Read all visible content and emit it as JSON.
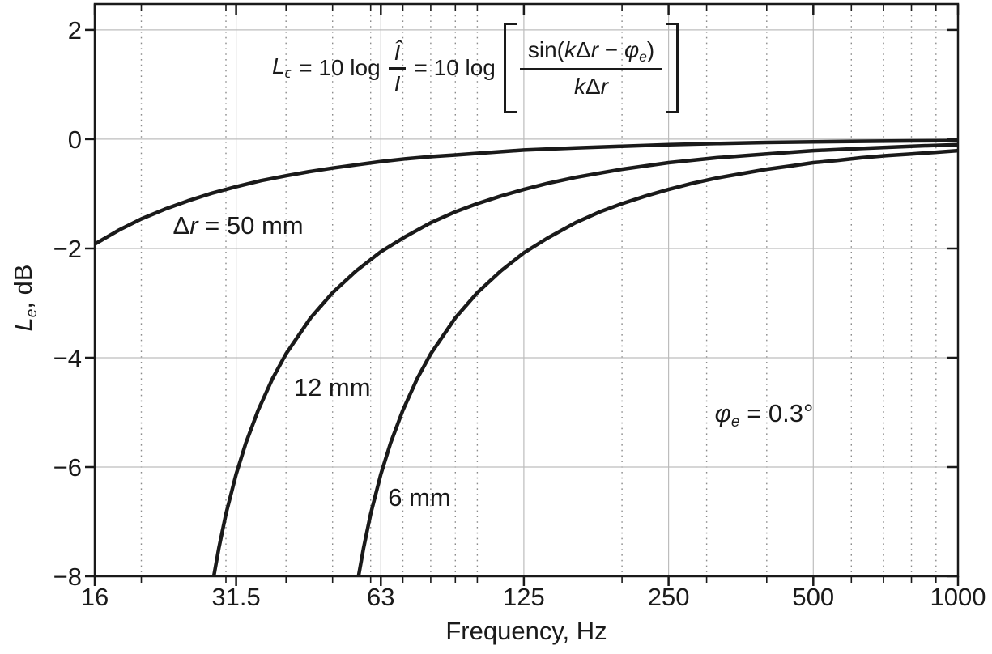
{
  "palette": {
    "curve": "#1a1a1a",
    "border": "#1a1a1a",
    "tick": "#1a1a1a",
    "text": "#1a1a1a",
    "grid_solid": "#bdbdbd",
    "grid_dotted": "#8a8a8a",
    "background": "#ffffff"
  },
  "formula": {
    "lhs": "L",
    "lhs_sub": "ϵ",
    "eq1": "= 10 log",
    "num1": "Î",
    "den1": "I",
    "eq2": "= 10 log",
    "n2_sin": "sin(",
    "n2_k": "k",
    "n2_d": "Δ",
    "n2_r": "r",
    "n2_minus": " − ",
    "n2_phi": "φ",
    "n2_sub": "e",
    "n2_close": ")",
    "d2_k": "k",
    "d2_d": "Δ",
    "d2_r": "r",
    "as_text": "L_ϵ = 10 log (Î/I) = 10 log [sin(kΔr − φ_e)/(kΔr)]"
  },
  "chart_data": {
    "type": "line",
    "title": "",
    "xlabel": "Frequency, Hz",
    "ylabel_parts": {
      "main": "L",
      "sub": "e",
      "rest": ", dB"
    },
    "x_scale": "log",
    "x_range": [
      16,
      1000
    ],
    "y_range": [
      -8,
      2.473
    ],
    "grid": "horizontal solid at each 2 dB; vertical solid at major octave ticks; vertical dotted at decade minors",
    "legend_position": "none (curves labeled inline)",
    "x_major_ticks": [
      {
        "v": 16,
        "label": "16",
        "grid": false
      },
      {
        "v": 31.5,
        "label": "31.5",
        "grid": true
      },
      {
        "v": 63,
        "label": "63",
        "grid": true
      },
      {
        "v": 125,
        "label": "125",
        "grid": true
      },
      {
        "v": 250,
        "label": "250",
        "grid": true
      },
      {
        "v": 500,
        "label": "500",
        "grid": true
      },
      {
        "v": 1000,
        "label": "1000",
        "grid": false
      }
    ],
    "x_minor_ticks": [
      20,
      30,
      40,
      50,
      60,
      70,
      80,
      90,
      100,
      200,
      300,
      400,
      600,
      700,
      800,
      900
    ],
    "y_ticks": [
      {
        "v": 2,
        "label": "2"
      },
      {
        "v": 0,
        "label": "0"
      },
      {
        "v": -2,
        "label": "−2"
      },
      {
        "v": -4,
        "label": "−4"
      },
      {
        "v": -6,
        "label": "−6"
      },
      {
        "v": -8,
        "label": "−8"
      }
    ],
    "phase_error_deg": 0.3,
    "series": [
      {
        "name": "Δr = 50 mm",
        "dr_mm": 50,
        "points": [
          [
            16,
            -1.92
          ],
          [
            18,
            -1.66
          ],
          [
            20,
            -1.46
          ],
          [
            22.4,
            -1.28
          ],
          [
            25,
            -1.13
          ],
          [
            28,
            -0.99
          ],
          [
            31.5,
            -0.87
          ],
          [
            35.5,
            -0.76
          ],
          [
            40,
            -0.67
          ],
          [
            45,
            -0.59
          ],
          [
            50,
            -0.53
          ],
          [
            56,
            -0.47
          ],
          [
            63,
            -0.41
          ],
          [
            71,
            -0.36
          ],
          [
            80,
            -0.32
          ],
          [
            90,
            -0.29
          ],
          [
            100,
            -0.26
          ],
          [
            125,
            -0.2
          ],
          [
            160,
            -0.16
          ],
          [
            200,
            -0.13
          ],
          [
            250,
            -0.1
          ],
          [
            315,
            -0.08
          ],
          [
            400,
            -0.06
          ],
          [
            500,
            -0.05
          ],
          [
            630,
            -0.04
          ],
          [
            800,
            -0.03
          ],
          [
            1000,
            -0.025
          ]
        ]
      },
      {
        "name": "12 mm",
        "dr_mm": 12,
        "points": [
          [
            27.25,
            -9.2
          ],
          [
            28.3,
            -8.0
          ],
          [
            29,
            -7.48
          ],
          [
            30,
            -6.86
          ],
          [
            31.5,
            -6.13
          ],
          [
            33,
            -5.56
          ],
          [
            35,
            -4.96
          ],
          [
            37.5,
            -4.38
          ],
          [
            40,
            -3.93
          ],
          [
            45,
            -3.27
          ],
          [
            50,
            -2.81
          ],
          [
            56,
            -2.41
          ],
          [
            63,
            -2.06
          ],
          [
            71,
            -1.78
          ],
          [
            80,
            -1.53
          ],
          [
            90,
            -1.33
          ],
          [
            100,
            -1.18
          ],
          [
            112,
            -1.04
          ],
          [
            125,
            -0.92
          ],
          [
            140,
            -0.81
          ],
          [
            160,
            -0.7
          ],
          [
            180,
            -0.62
          ],
          [
            200,
            -0.55
          ],
          [
            250,
            -0.43
          ],
          [
            315,
            -0.34
          ],
          [
            400,
            -0.27
          ],
          [
            500,
            -0.21
          ],
          [
            630,
            -0.17
          ],
          [
            800,
            -0.13
          ],
          [
            1000,
            -0.1
          ]
        ]
      },
      {
        "name": "6 mm",
        "dr_mm": 6,
        "points": [
          [
            54.5,
            -9.2
          ],
          [
            56.6,
            -8.0
          ],
          [
            58,
            -7.48
          ],
          [
            60,
            -6.86
          ],
          [
            63,
            -6.13
          ],
          [
            66,
            -5.56
          ],
          [
            70,
            -4.96
          ],
          [
            75,
            -4.38
          ],
          [
            80,
            -3.93
          ],
          [
            90,
            -3.27
          ],
          [
            100,
            -2.81
          ],
          [
            112,
            -2.41
          ],
          [
            125,
            -2.08
          ],
          [
            140,
            -1.81
          ],
          [
            160,
            -1.53
          ],
          [
            180,
            -1.33
          ],
          [
            200,
            -1.18
          ],
          [
            224,
            -1.04
          ],
          [
            250,
            -0.92
          ],
          [
            280,
            -0.81
          ],
          [
            315,
            -0.71
          ],
          [
            355,
            -0.63
          ],
          [
            400,
            -0.55
          ],
          [
            450,
            -0.49
          ],
          [
            500,
            -0.43
          ],
          [
            560,
            -0.39
          ],
          [
            630,
            -0.34
          ],
          [
            710,
            -0.3
          ],
          [
            800,
            -0.27
          ],
          [
            900,
            -0.24
          ],
          [
            1000,
            -0.21
          ]
        ]
      }
    ],
    "annotations": [
      {
        "name": "label-dr-50mm",
        "f": 31.8,
        "db": -1.58,
        "parts": [
          {
            "t": "Δ"
          },
          {
            "t": "r",
            "s": "it"
          },
          {
            "t": " = 50 mm"
          }
        ]
      },
      {
        "name": "label-12mm",
        "f": 49.9,
        "db": -4.55,
        "parts": [
          {
            "t": "12 mm"
          }
        ]
      },
      {
        "name": "label-6mm",
        "f": 75.8,
        "db": -6.57,
        "parts": [
          {
            "t": "6 mm"
          }
        ]
      },
      {
        "name": "label-phase-error",
        "f": 395,
        "db": -5.05,
        "parts": [
          {
            "t": "φ",
            "s": "it"
          },
          {
            "t": "e",
            "s": "isub"
          },
          {
            "t": " = 0.3°"
          }
        ]
      }
    ]
  }
}
